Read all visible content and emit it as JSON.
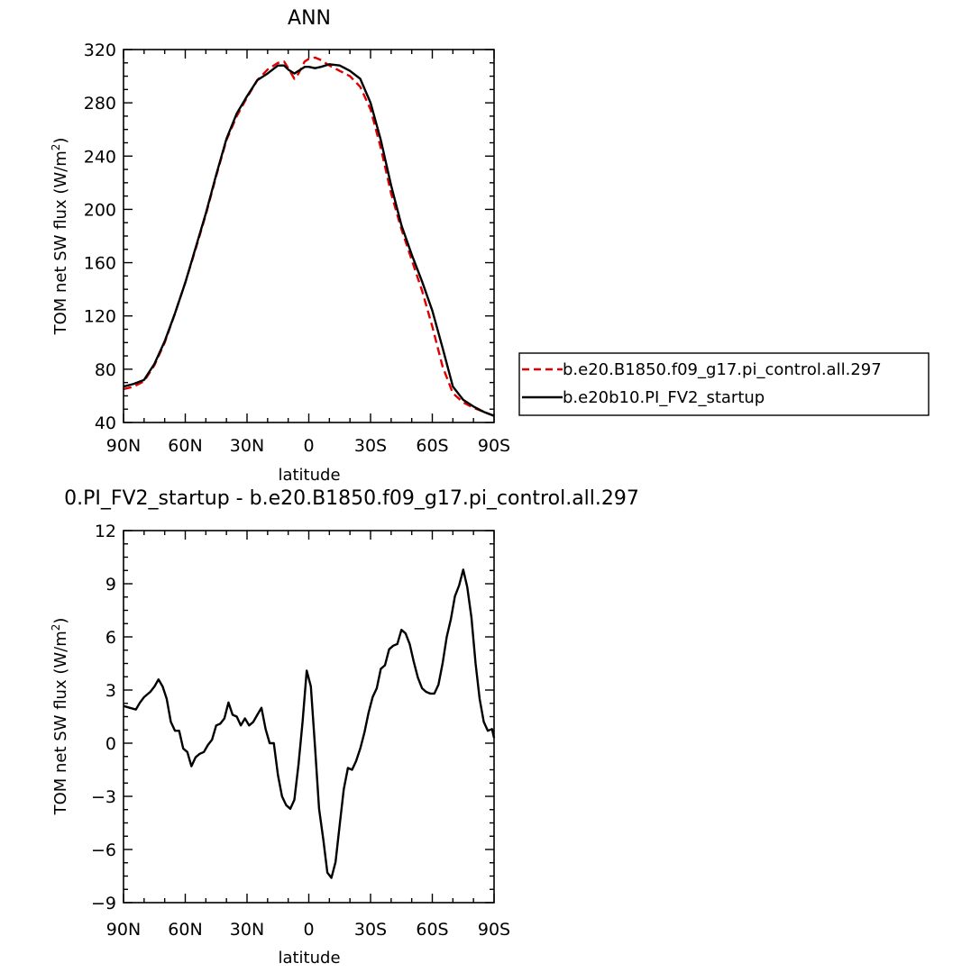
{
  "chart_data": [
    {
      "type": "line",
      "title": "ANN",
      "xlabel": "latitude",
      "ylabel": "TOM net SW flux (W/m²)",
      "x_tick_labels": [
        "90N",
        "60N",
        "30N",
        "0",
        "30S",
        "60S",
        "90S"
      ],
      "x_ticks": [
        90,
        60,
        30,
        0,
        -30,
        -60,
        -90
      ],
      "xlim": [
        90,
        -90
      ],
      "ylim": [
        40,
        320
      ],
      "y_ticks": [
        40,
        80,
        120,
        160,
        200,
        240,
        280,
        320
      ],
      "legend_position": "right",
      "series": [
        {
          "name": "b.e20.B1850.f09_g17.pi_control.all.297",
          "color": "#e00000",
          "dashed": true,
          "x": [
            90,
            85,
            80,
            75,
            70,
            65,
            60,
            55,
            50,
            45,
            40,
            35,
            30,
            25,
            20,
            15,
            12,
            10,
            7,
            5,
            2,
            0,
            -3,
            -6,
            -10,
            -15,
            -20,
            -25,
            -30,
            -35,
            -40,
            -45,
            -50,
            -55,
            -60,
            -65,
            -70,
            -75,
            -80,
            -85,
            -90
          ],
          "y": [
            65,
            67,
            71,
            83,
            100,
            122,
            145,
            170,
            196,
            225,
            252,
            270,
            284,
            297,
            305,
            310,
            311,
            306,
            298,
            302,
            311,
            313,
            314,
            312,
            308,
            304,
            300,
            292,
            275,
            246,
            212,
            185,
            162,
            139,
            112,
            82,
            62,
            55,
            51,
            48,
            45
          ],
          "line_points": [
            [
              90,
              65
            ],
            [
              85,
              67
            ],
            [
              80,
              71
            ],
            [
              75,
              83
            ],
            [
              70,
              100
            ],
            [
              65,
              122
            ],
            [
              60,
              145
            ],
            [
              55,
              170
            ],
            [
              50,
              196
            ],
            [
              45,
              225
            ],
            [
              40,
              252
            ],
            [
              35,
              270
            ],
            [
              30,
              284
            ],
            [
              25,
              297
            ],
            [
              20,
              305
            ],
            [
              15,
              310
            ],
            [
              12,
              311
            ],
            [
              10,
              306
            ],
            [
              7,
              298
            ],
            [
              5,
              302
            ],
            [
              2,
              311
            ],
            [
              0,
              313
            ],
            [
              -3,
              314
            ],
            [
              -6,
              312
            ],
            [
              -10,
              308
            ],
            [
              -15,
              304
            ],
            [
              -20,
              300
            ],
            [
              -25,
              292
            ],
            [
              -30,
              275
            ],
            [
              -35,
              246
            ],
            [
              -40,
              212
            ],
            [
              -45,
              185
            ],
            [
              -50,
              162
            ],
            [
              -55,
              139
            ],
            [
              -60,
              112
            ],
            [
              -65,
              82
            ],
            [
              -70,
              62
            ],
            [
              -75,
              55
            ],
            [
              -80,
              51
            ],
            [
              -85,
              48
            ],
            [
              -90,
              45
            ]
          ]
        },
        {
          "name": "b.e20b10.PI_FV2_startup",
          "color": "#000000",
          "dashed": false,
          "x": [
            90,
            85,
            80,
            75,
            70,
            65,
            60,
            55,
            50,
            45,
            40,
            35,
            30,
            25,
            20,
            15,
            12,
            10,
            7,
            5,
            2,
            0,
            -3,
            -6,
            -10,
            -15,
            -20,
            -25,
            -30,
            -35,
            -40,
            -45,
            -50,
            -55,
            -60,
            -65,
            -70,
            -75,
            -80,
            -85,
            -90
          ],
          "y": [
            67,
            69,
            72,
            84,
            101,
            122,
            145,
            171,
            197,
            226,
            253,
            272,
            285,
            297,
            302,
            308,
            308,
            305,
            302,
            304,
            307,
            307,
            306,
            307,
            309,
            308,
            304,
            298,
            280,
            252,
            218,
            188,
            166,
            146,
            124,
            96,
            67,
            57,
            52,
            48,
            45
          ]
        }
      ]
    },
    {
      "type": "line",
      "title": "0.PI_FV2_startup - b.e20.B1850.f09_g17.pi_control.all.297",
      "xlabel": "latitude",
      "ylabel": "TOM net SW flux (W/m²)",
      "x_tick_labels": [
        "90N",
        "60N",
        "30N",
        "0",
        "30S",
        "60S",
        "90S"
      ],
      "x_ticks": [
        90,
        60,
        30,
        0,
        -30,
        -60,
        -90
      ],
      "xlim": [
        90,
        -90
      ],
      "ylim": [
        -9,
        12
      ],
      "y_ticks": [
        -9,
        -6,
        -3,
        0,
        3,
        6,
        9,
        12
      ],
      "series": [
        {
          "color": "#000000",
          "x": [
            90,
            87,
            84,
            82,
            80,
            77,
            75,
            73,
            71,
            69,
            67,
            65,
            63,
            61,
            59,
            57,
            55,
            53,
            51,
            49,
            47,
            45,
            43,
            41,
            39,
            37,
            35,
            33,
            31,
            29,
            27,
            25,
            23,
            21,
            19,
            17,
            15,
            13,
            11,
            9,
            7,
            5,
            3,
            1,
            -1,
            -3,
            -5,
            -7,
            -9,
            -11,
            -13,
            -15,
            -17,
            -19,
            -21,
            -23,
            -25,
            -27,
            -29,
            -31,
            -33,
            -35,
            -37,
            -39,
            -41,
            -43,
            -45,
            -47,
            -49,
            -51,
            -53,
            -55,
            -57,
            -59,
            -61,
            -63,
            -65,
            -67,
            -69,
            -71,
            -73,
            -75,
            -77,
            -79,
            -81,
            -83,
            -85,
            -87,
            -89,
            -90
          ],
          "y": [
            2.1,
            2.0,
            1.9,
            2.3,
            2.6,
            2.9,
            3.2,
            3.6,
            3.2,
            2.5,
            1.2,
            0.7,
            0.7,
            -0.3,
            -0.5,
            -1.3,
            -0.8,
            -0.6,
            -0.5,
            -0.1,
            0.2,
            1.0,
            1.1,
            1.4,
            2.3,
            1.6,
            1.5,
            1.0,
            1.4,
            1.0,
            1.2,
            1.6,
            2.0,
            0.8,
            0.0,
            0.0,
            -1.8,
            -3.0,
            -3.5,
            -3.7,
            -3.2,
            -1.2,
            1.2,
            4.1,
            3.2,
            -0.2,
            -3.7,
            -5.4,
            -7.3,
            -7.6,
            -6.7,
            -4.6,
            -2.6,
            -1.4,
            -1.5,
            -1.0,
            -0.3,
            0.6,
            1.7,
            2.6,
            3.1,
            4.2,
            4.4,
            5.3,
            5.5,
            5.6,
            6.4,
            6.2,
            5.6,
            4.6,
            3.7,
            3.1,
            2.9,
            2.8,
            2.8,
            3.3,
            4.5,
            6.0,
            7.0,
            8.3,
            8.9,
            9.8,
            8.8,
            7.1,
            4.5,
            2.5,
            1.2,
            0.7,
            0.8,
            0.3
          ]
        }
      ]
    }
  ]
}
